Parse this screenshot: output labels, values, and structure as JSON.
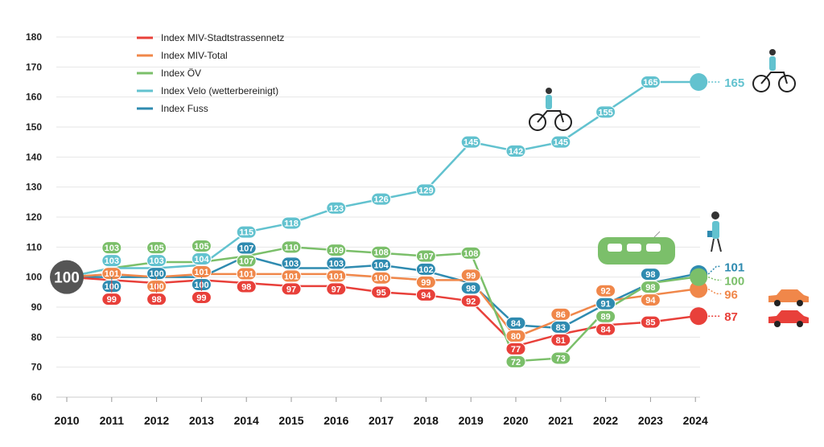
{
  "chart_data": {
    "type": "line",
    "x": [
      2010,
      2011,
      2012,
      2013,
      2014,
      2015,
      2016,
      2017,
      2018,
      2019,
      2020,
      2021,
      2022,
      2023,
      2024
    ],
    "ylim": [
      60,
      180
    ],
    "yticks": [
      60,
      70,
      80,
      90,
      100,
      110,
      120,
      130,
      140,
      150,
      160,
      170,
      180
    ],
    "grid": true,
    "legend_placement": "top-left",
    "series": [
      {
        "name": "Index MIV-Stadtstrassennetz",
        "color": "#e8403a",
        "values": [
          100,
          99,
          98,
          99,
          98,
          97,
          97,
          95,
          94,
          92,
          77,
          81,
          84,
          85,
          87
        ]
      },
      {
        "name": "Index MIV-Total",
        "color": "#f0874a",
        "values": [
          100,
          101,
          100,
          101,
          101,
          101,
          101,
          100,
          99,
          99,
          80,
          86,
          92,
          94,
          96
        ]
      },
      {
        "name": "Index ÖV",
        "color": "#7bbf6a",
        "values": [
          100,
          103,
          105,
          105,
          107,
          110,
          109,
          108,
          107,
          108,
          72,
          73,
          89,
          98,
          100
        ]
      },
      {
        "name": "Index Velo (wetterbereinigt)",
        "color": "#62c2cf",
        "values": [
          100,
          103,
          103,
          104,
          115,
          118,
          123,
          126,
          129,
          145,
          142,
          145,
          155,
          165,
          165
        ]
      },
      {
        "name": "Index Fuss",
        "color": "#2f8bb0",
        "values": [
          100,
          100,
          100,
          100,
          107,
          103,
          103,
          104,
          102,
          98,
          84,
          83,
          91,
          98,
          101
        ]
      }
    ],
    "start_label": "100",
    "start_color": "#555555"
  }
}
